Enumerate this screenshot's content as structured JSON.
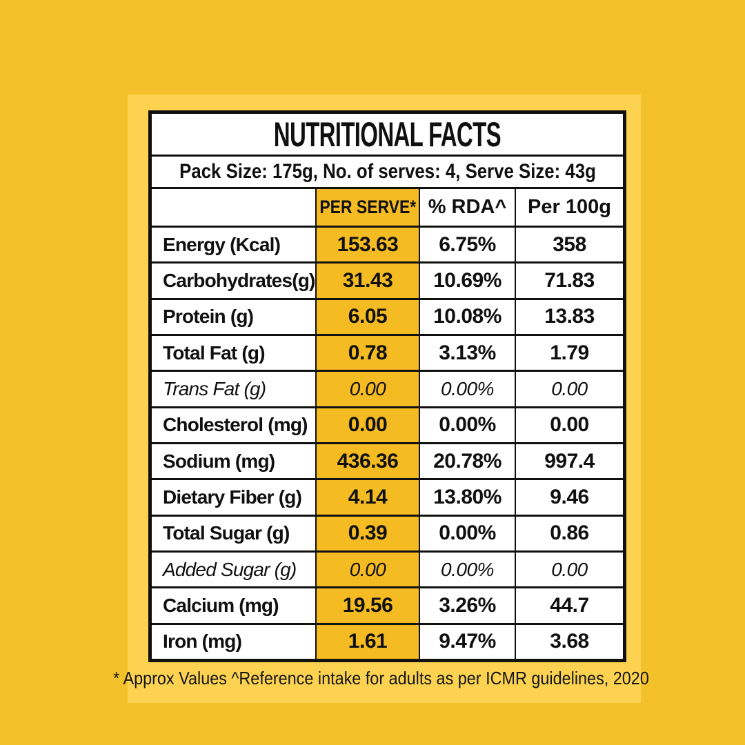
{
  "colors": {
    "background": "#F5C12B",
    "panel": "#FCD250",
    "highlight_column": "#F5BB22",
    "border": "#101010",
    "cell_background": "#FFFFFF"
  },
  "table": {
    "title": "NUTRITIONAL FACTS",
    "pack_info": "Pack Size: 175g, No. of serves: 4, Serve Size: 43g",
    "columns": [
      "",
      "PER SERVE*",
      "% RDA^",
      "Per 100g"
    ],
    "rows": [
      {
        "label": "Energy (Kcal)",
        "per_serve": "153.63",
        "rda": "6.75%",
        "per_100g": "358",
        "italic": false
      },
      {
        "label": "Carbohydrates(g)",
        "per_serve": "31.43",
        "rda": "10.69%",
        "per_100g": "71.83",
        "italic": false
      },
      {
        "label": "Protein (g)",
        "per_serve": "6.05",
        "rda": "10.08%",
        "per_100g": "13.83",
        "italic": false
      },
      {
        "label": "Total Fat (g)",
        "per_serve": "0.78",
        "rda": "3.13%",
        "per_100g": "1.79",
        "italic": false
      },
      {
        "label": "Trans Fat (g)",
        "per_serve": "0.00",
        "rda": "0.00%",
        "per_100g": "0.00",
        "italic": true
      },
      {
        "label": "Cholesterol (mg)",
        "per_serve": "0.00",
        "rda": "0.00%",
        "per_100g": "0.00",
        "italic": false
      },
      {
        "label": "Sodium (mg)",
        "per_serve": "436.36",
        "rda": "20.78%",
        "per_100g": "997.4",
        "italic": false
      },
      {
        "label": "Dietary Fiber (g)",
        "per_serve": "4.14",
        "rda": "13.80%",
        "per_100g": "9.46",
        "italic": false
      },
      {
        "label": "Total Sugar (g)",
        "per_serve": "0.39",
        "rda": "0.00%",
        "per_100g": "0.86",
        "italic": false
      },
      {
        "label": "Added Sugar (g)",
        "per_serve": "0.00",
        "rda": "0.00%",
        "per_100g": "0.00",
        "italic": true
      },
      {
        "label": "Calcium (mg)",
        "per_serve": "19.56",
        "rda": "3.26%",
        "per_100g": "44.7",
        "italic": false
      },
      {
        "label": "Iron (mg)",
        "per_serve": "1.61",
        "rda": "9.47%",
        "per_100g": "3.68",
        "italic": false
      }
    ]
  },
  "footnote": "* Approx Values ^Reference intake for adults as per ICMR guidelines, 2020"
}
